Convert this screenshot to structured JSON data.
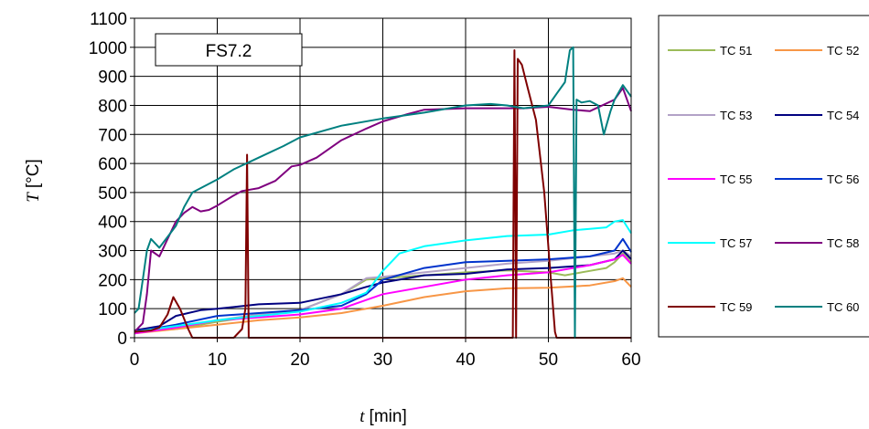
{
  "chart_data": {
    "type": "line",
    "annotation": "FS7.2",
    "xlabel": {
      "var": "t",
      "unit": "[min]"
    },
    "ylabel": {
      "var": "T",
      "unit": "[°C]"
    },
    "xlim": [
      0,
      60
    ],
    "ylim": [
      0,
      1100
    ],
    "xticks": [
      "0",
      "10",
      "20",
      "30",
      "40",
      "50",
      "60"
    ],
    "yticks": [
      "0",
      "100",
      "200",
      "300",
      "400",
      "500",
      "600",
      "700",
      "800",
      "900",
      "1000",
      "1100"
    ],
    "grid": "horizontal and vertical",
    "legend_position": "right",
    "series": [
      {
        "name": "TC 51",
        "color": "#9BBB59",
        "points": [
          [
            0,
            20
          ],
          [
            5,
            30
          ],
          [
            10,
            55
          ],
          [
            15,
            75
          ],
          [
            20,
            95
          ],
          [
            25,
            150
          ],
          [
            28,
            200
          ],
          [
            30,
            205
          ],
          [
            35,
            215
          ],
          [
            40,
            225
          ],
          [
            45,
            232
          ],
          [
            50,
            225
          ],
          [
            52,
            215
          ],
          [
            55,
            230
          ],
          [
            57,
            240
          ],
          [
            58,
            260
          ],
          [
            59,
            290
          ],
          [
            60,
            260
          ]
        ]
      },
      {
        "name": "TC 52",
        "color": "#F79646",
        "points": [
          [
            0,
            15
          ],
          [
            5,
            30
          ],
          [
            10,
            45
          ],
          [
            15,
            60
          ],
          [
            20,
            70
          ],
          [
            25,
            85
          ],
          [
            30,
            110
          ],
          [
            35,
            140
          ],
          [
            40,
            160
          ],
          [
            45,
            170
          ],
          [
            50,
            172
          ],
          [
            55,
            180
          ],
          [
            58,
            195
          ],
          [
            59,
            205
          ],
          [
            60,
            175
          ]
        ]
      },
      {
        "name": "TC 53",
        "color": "#B3A2C7",
        "points": [
          [
            0,
            20
          ],
          [
            5,
            35
          ],
          [
            10,
            60
          ],
          [
            15,
            80
          ],
          [
            20,
            95
          ],
          [
            25,
            150
          ],
          [
            28,
            205
          ],
          [
            30,
            210
          ],
          [
            35,
            225
          ],
          [
            40,
            240
          ],
          [
            45,
            255
          ],
          [
            50,
            265
          ],
          [
            55,
            280
          ],
          [
            58,
            290
          ],
          [
            59,
            300
          ],
          [
            60,
            280
          ]
        ]
      },
      {
        "name": "TC 54",
        "color": "#000080",
        "points": [
          [
            0,
            25
          ],
          [
            3,
            40
          ],
          [
            5,
            75
          ],
          [
            8,
            95
          ],
          [
            10,
            100
          ],
          [
            15,
            115
          ],
          [
            20,
            120
          ],
          [
            25,
            150
          ],
          [
            28,
            175
          ],
          [
            30,
            190
          ],
          [
            35,
            215
          ],
          [
            40,
            220
          ],
          [
            45,
            235
          ],
          [
            50,
            240
          ],
          [
            55,
            250
          ],
          [
            58,
            270
          ],
          [
            59,
            300
          ],
          [
            60,
            270
          ]
        ]
      },
      {
        "name": "TC 55",
        "color": "#FF00FF",
        "points": [
          [
            0,
            15
          ],
          [
            5,
            35
          ],
          [
            10,
            60
          ],
          [
            15,
            70
          ],
          [
            20,
            80
          ],
          [
            25,
            100
          ],
          [
            30,
            150
          ],
          [
            35,
            175
          ],
          [
            40,
            200
          ],
          [
            45,
            215
          ],
          [
            50,
            225
          ],
          [
            55,
            250
          ],
          [
            58,
            270
          ],
          [
            59,
            285
          ],
          [
            60,
            255
          ]
        ]
      },
      {
        "name": "TC 56",
        "color": "#0033CC",
        "points": [
          [
            0,
            20
          ],
          [
            5,
            45
          ],
          [
            10,
            75
          ],
          [
            15,
            85
          ],
          [
            20,
            95
          ],
          [
            25,
            110
          ],
          [
            28,
            150
          ],
          [
            30,
            200
          ],
          [
            35,
            240
          ],
          [
            40,
            260
          ],
          [
            45,
            265
          ],
          [
            50,
            270
          ],
          [
            55,
            280
          ],
          [
            58,
            300
          ],
          [
            59,
            340
          ],
          [
            60,
            295
          ]
        ]
      },
      {
        "name": "TC 57",
        "color": "#00FFFF",
        "points": [
          [
            0,
            20
          ],
          [
            5,
            40
          ],
          [
            10,
            60
          ],
          [
            15,
            75
          ],
          [
            20,
            90
          ],
          [
            25,
            120
          ],
          [
            28,
            155
          ],
          [
            30,
            230
          ],
          [
            32,
            290
          ],
          [
            35,
            315
          ],
          [
            40,
            335
          ],
          [
            45,
            350
          ],
          [
            50,
            355
          ],
          [
            53,
            370
          ],
          [
            55,
            375
          ],
          [
            57,
            380
          ],
          [
            58,
            400
          ],
          [
            59,
            405
          ],
          [
            60,
            360
          ]
        ]
      },
      {
        "name": "TC 58",
        "color": "#7F007F",
        "points": [
          [
            0,
            20
          ],
          [
            1,
            50
          ],
          [
            1.5,
            150
          ],
          [
            2,
            300
          ],
          [
            3,
            280
          ],
          [
            4,
            340
          ],
          [
            5,
            400
          ],
          [
            6,
            430
          ],
          [
            7,
            450
          ],
          [
            8,
            435
          ],
          [
            9,
            440
          ],
          [
            10,
            455
          ],
          [
            12,
            490
          ],
          [
            13,
            505
          ],
          [
            15,
            515
          ],
          [
            17,
            540
          ],
          [
            19,
            590
          ],
          [
            20,
            595
          ],
          [
            22,
            620
          ],
          [
            25,
            680
          ],
          [
            28,
            720
          ],
          [
            30,
            745
          ],
          [
            33,
            770
          ],
          [
            35,
            785
          ],
          [
            40,
            790
          ],
          [
            45,
            790
          ],
          [
            47,
            790
          ],
          [
            50,
            795
          ],
          [
            53,
            785
          ],
          [
            55,
            780
          ],
          [
            58,
            820
          ],
          [
            59,
            860
          ],
          [
            60,
            780
          ]
        ]
      },
      {
        "name": "TC 59",
        "color": "#7F0000",
        "points": [
          [
            0,
            20
          ],
          [
            2,
            25
          ],
          [
            3,
            35
          ],
          [
            4,
            80
          ],
          [
            4.7,
            140
          ],
          [
            5.5,
            100
          ],
          [
            6.5,
            30
          ],
          [
            7,
            0
          ],
          [
            12,
            0
          ],
          [
            13,
            30
          ],
          [
            13.4,
            100
          ],
          [
            13.6,
            630
          ],
          [
            13.8,
            0
          ],
          [
            45.7,
            0
          ],
          [
            45.9,
            990
          ],
          [
            46.1,
            0
          ],
          [
            46.3,
            960
          ],
          [
            46.8,
            940
          ],
          [
            47.5,
            860
          ],
          [
            48.5,
            750
          ],
          [
            49.5,
            500
          ],
          [
            50.3,
            200
          ],
          [
            50.8,
            20
          ],
          [
            51,
            0
          ],
          [
            60,
            0
          ]
        ]
      },
      {
        "name": "TC 60",
        "color": "#008080",
        "points": [
          [
            0,
            85
          ],
          [
            0.5,
            100
          ],
          [
            1,
            200
          ],
          [
            1.5,
            300
          ],
          [
            2,
            340
          ],
          [
            3,
            310
          ],
          [
            5,
            385
          ],
          [
            6,
            450
          ],
          [
            7,
            500
          ],
          [
            10,
            545
          ],
          [
            12,
            580
          ],
          [
            15,
            620
          ],
          [
            18,
            660
          ],
          [
            20,
            690
          ],
          [
            25,
            730
          ],
          [
            30,
            755
          ],
          [
            35,
            775
          ],
          [
            40,
            800
          ],
          [
            43,
            805
          ],
          [
            45,
            800
          ],
          [
            47,
            790
          ],
          [
            50,
            800
          ],
          [
            51,
            840
          ],
          [
            52,
            880
          ],
          [
            52.6,
            990
          ],
          [
            53,
            1000
          ],
          [
            53.2,
            0
          ],
          [
            53.4,
            820
          ],
          [
            54,
            810
          ],
          [
            55,
            815
          ],
          [
            56,
            800
          ],
          [
            56.7,
            700
          ],
          [
            57.5,
            780
          ],
          [
            58,
            820
          ],
          [
            59,
            870
          ],
          [
            60,
            830
          ]
        ]
      }
    ]
  }
}
